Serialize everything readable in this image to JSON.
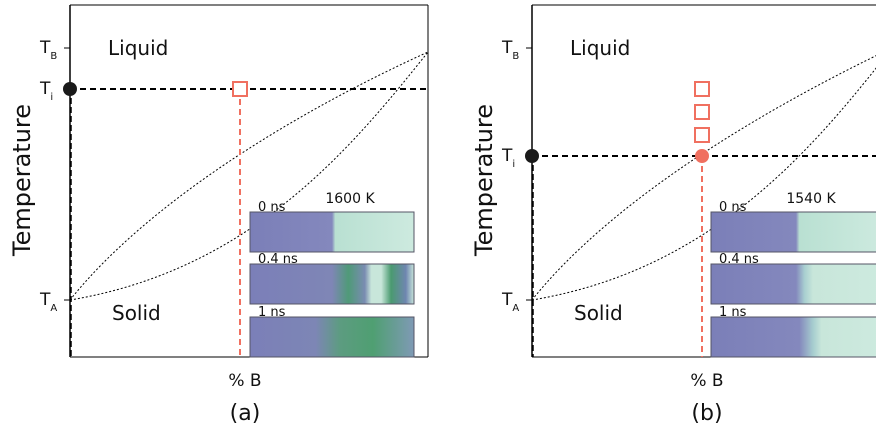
{
  "panels": [
    {
      "caption": "(a)",
      "y_axis_label": "Temperature",
      "x_axis_label": "% B",
      "ticks": [
        {
          "main": "T",
          "sub": "B"
        },
        {
          "main": "T",
          "sub": "i"
        },
        {
          "main": "T",
          "sub": "A"
        }
      ],
      "regions": [
        "Liquid",
        "Solid"
      ],
      "temperature": "1600 K",
      "times": [
        "0 ns",
        "0.4 ns",
        "1 ns"
      ]
    },
    {
      "caption": "(b)",
      "y_axis_label": "Temperature",
      "x_axis_label": "% B",
      "ticks": [
        {
          "main": "T",
          "sub": "B"
        },
        {
          "main": "T",
          "sub": "i"
        },
        {
          "main": "T",
          "sub": "A"
        }
      ],
      "regions": [
        "Liquid",
        "Solid"
      ],
      "temperature": "1540 K",
      "times": [
        "0 ns",
        "0.4 ns",
        "1 ns"
      ]
    }
  ]
}
